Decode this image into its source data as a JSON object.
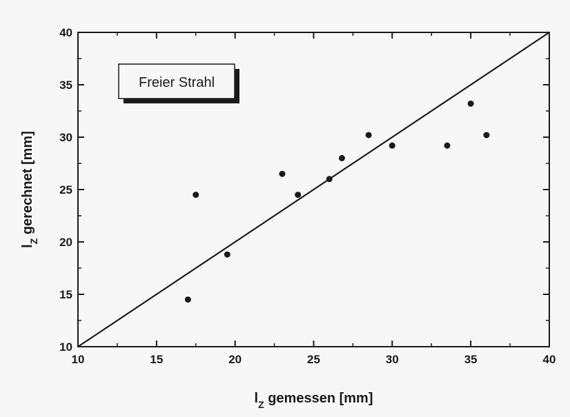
{
  "chart_data": {
    "type": "scatter",
    "title": "",
    "xlabel": {
      "prefix": "l",
      "subscript": "Z",
      "suffix": " gemessen [mm]"
    },
    "ylabel": {
      "prefix": "l",
      "subscript": "Z",
      "suffix": " gerechnet [mm]"
    },
    "xlim": [
      10,
      40
    ],
    "ylim": [
      10,
      40
    ],
    "xticks": [
      "10",
      "15",
      "20",
      "25",
      "30",
      "35",
      "40"
    ],
    "yticks": [
      "10",
      "15",
      "20",
      "25",
      "30",
      "35",
      "40"
    ],
    "grid": false,
    "annotation": "Freier Strahl",
    "reference_line": {
      "from": [
        10,
        10
      ],
      "to": [
        40,
        40
      ]
    },
    "colors": {
      "marker": "#1a1a1a",
      "axis": "#1a1a1a",
      "background": "#f7f7f7"
    },
    "series": [
      {
        "points": [
          [
            17.0,
            14.5
          ],
          [
            17.5,
            24.5
          ],
          [
            19.5,
            18.8
          ],
          [
            23.0,
            26.5
          ],
          [
            24.0,
            24.5
          ],
          [
            26.0,
            26.0
          ],
          [
            26.8,
            28.0
          ],
          [
            28.5,
            30.2
          ],
          [
            30.0,
            29.2
          ],
          [
            33.5,
            29.2
          ],
          [
            35.0,
            33.2
          ],
          [
            36.0,
            30.2
          ]
        ]
      }
    ]
  }
}
